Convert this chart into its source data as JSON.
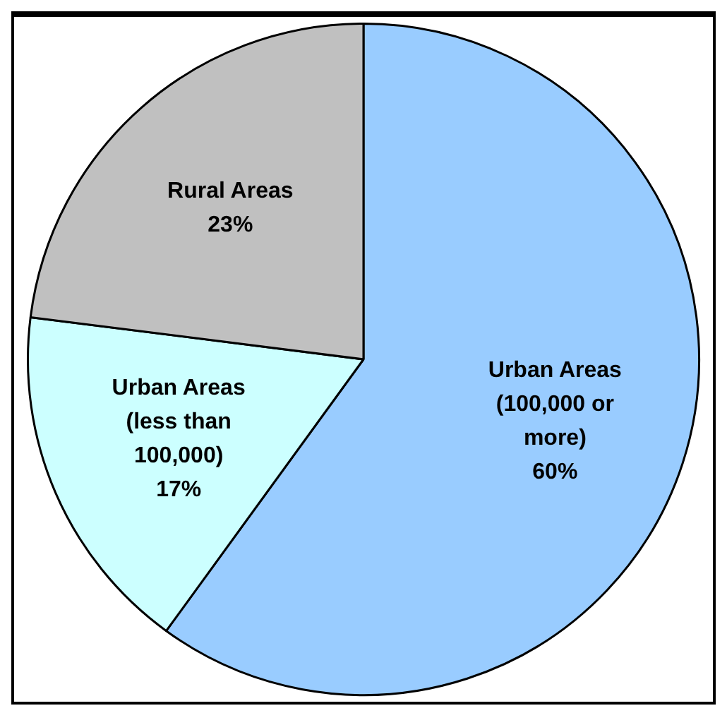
{
  "chart_data": {
    "type": "pie",
    "categories": [
      "Urban Areas (100,000 or more)",
      "Urban Areas (less than 100,000)",
      "Rural Areas"
    ],
    "values": [
      60,
      17,
      23
    ],
    "colors": [
      "#99ccff",
      "#ccffff",
      "#c0c0c0"
    ],
    "value_labels": [
      "60%",
      "17%",
      "23%"
    ],
    "legend": false
  }
}
